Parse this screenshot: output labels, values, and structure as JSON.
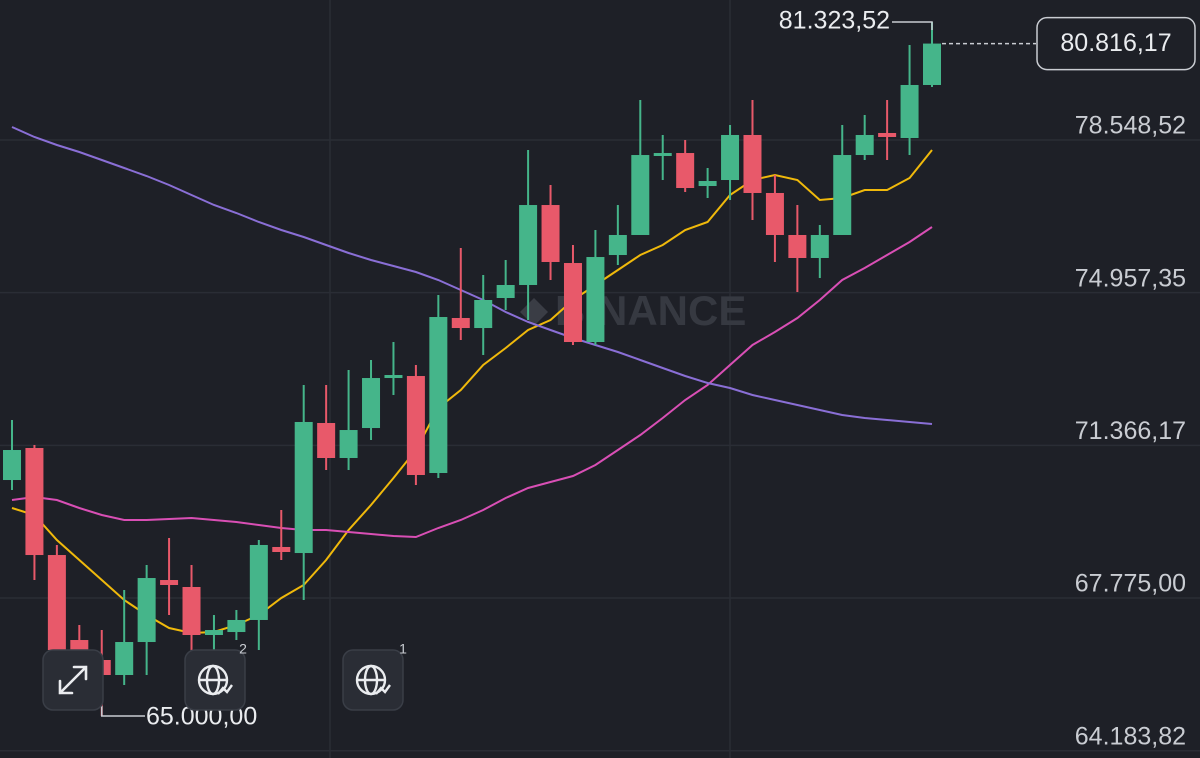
{
  "chart_data": {
    "type": "candlestick",
    "up_color": "#45b58a",
    "down_color": "#e8596a",
    "watermark": "BINANCE",
    "ylim": [
      64013,
      81841
    ],
    "yticks": [
      {
        "value": 78548.52,
        "label": "78.548,52"
      },
      {
        "value": 74957.35,
        "label": "74.957,35"
      },
      {
        "value": 71366.17,
        "label": "71.366,17"
      },
      {
        "value": 67775.0,
        "label": "67.775,00"
      },
      {
        "value": 64183.82,
        "label": "64.183,82"
      }
    ],
    "grid": true,
    "ohlc": {
      "open": [
        70551,
        71304,
        68787,
        66788,
        66318,
        65965,
        66741,
        68199,
        68035,
        66906,
        66976,
        67259,
        68976,
        68834,
        71892,
        71069,
        71774,
        72950,
        72997,
        70716,
        74362,
        74126,
        74832,
        75138,
        77019,
        75655,
        73797,
        75843,
        76314,
        78172,
        78242,
        77466,
        77607,
        78666,
        77302,
        76314,
        75773,
        76314,
        78195,
        78713,
        78595,
        79842
      ],
      "high": [
        71963,
        71375,
        69023,
        67141,
        67023,
        67964,
        68552,
        69187,
        68552,
        67376,
        67494,
        69140,
        69846,
        72786,
        72786,
        73139,
        73374,
        73797,
        73256,
        74903,
        76008,
        75373,
        75726,
        78313,
        77490,
        76079,
        76431,
        77019,
        79489,
        78666,
        78548,
        77890,
        78901,
        79489,
        77725,
        77019,
        76549,
        78901,
        79136,
        79489,
        80783,
        81323.52
      ],
      "low": [
        70316,
        68199,
        66200,
        65612,
        65000,
        65730,
        65965,
        67376,
        66318,
        66553,
        66788,
        66553,
        68670,
        67729,
        70787,
        70787,
        71492,
        72551,
        70434,
        70598,
        73844,
        73491,
        74550,
        74315,
        75255,
        73727,
        73727,
        75608,
        76314,
        77607,
        77325,
        77184,
        77137,
        76667,
        75679,
        74973,
        75302,
        76314,
        78078,
        78078,
        78195,
        79795
      ],
      "close": [
        71257,
        68787,
        66553,
        66200,
        65965,
        66741,
        68246,
        68082,
        66906,
        67023,
        67259,
        69023,
        68858,
        71916,
        71069,
        71727,
        72950,
        73021,
        70669,
        74385,
        74126,
        74785,
        75138,
        77019,
        75679,
        73797,
        75796,
        76314,
        78195,
        78242,
        77419,
        77584,
        78666,
        77302,
        76314,
        75773,
        76314,
        78195,
        78666,
        78619,
        79842,
        80816.17
      ]
    },
    "lines": [
      {
        "color": "#f0b90b",
        "values": [
          69893,
          69728,
          69140,
          68670,
          68199,
          67729,
          67376,
          67070,
          66953,
          66976,
          67141,
          67376,
          67776,
          68082,
          68670,
          69375,
          69963,
          70598,
          71257,
          72245,
          72668,
          73256,
          73656,
          74079,
          74315,
          74785,
          75138,
          75491,
          75843,
          76079,
          76431,
          76620,
          77255,
          77607,
          77725,
          77607,
          77137,
          77184,
          77372,
          77372,
          77654,
          78313
        ]
      },
      {
        "color": "#d94fb5",
        "values": [
          70081,
          70152,
          70081,
          69893,
          69728,
          69611,
          69611,
          69634,
          69658,
          69611,
          69564,
          69493,
          69422,
          69375,
          69375,
          69328,
          69281,
          69234,
          69211,
          69422,
          69611,
          69846,
          70128,
          70363,
          70504,
          70645,
          70904,
          71257,
          71610,
          72010,
          72433,
          72786,
          73256,
          73727,
          74032,
          74362,
          74785,
          75255,
          75538,
          75843,
          76149,
          76502
        ]
      },
      {
        "color": "#8a6fd6",
        "values": [
          78854,
          78619,
          78431,
          78266,
          78078,
          77890,
          77701,
          77490,
          77255,
          77019,
          76831,
          76620,
          76431,
          76267,
          76079,
          75890,
          75726,
          75585,
          75444,
          75255,
          75020,
          74785,
          74503,
          74268,
          74079,
          73891,
          73727,
          73562,
          73374,
          73186,
          72997,
          72833,
          72715,
          72551,
          72433,
          72315,
          72198,
          72080,
          72010,
          71963,
          71916,
          71869
        ]
      }
    ],
    "annotations": [
      {
        "value": 81323.52,
        "label": "81.323,52"
      },
      {
        "value": 80816.17,
        "label": "80.816,17"
      },
      {
        "value": 65000.0,
        "label": "65.000,00"
      }
    ]
  },
  "toolbar": {
    "badges": [
      "2",
      "1"
    ]
  }
}
